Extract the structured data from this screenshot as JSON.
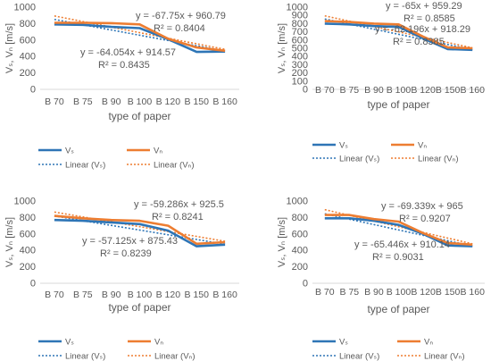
{
  "chart_data": [
    {
      "type": "line",
      "categories": [
        "B 70",
        "B 75",
        "B 90",
        "B 100",
        "B 120",
        "B 150",
        "B 160"
      ],
      "series": [
        {
          "name": "Vₛ",
          "values": [
            790,
            785,
            760,
            745,
            610,
            455,
            460
          ],
          "color": "#2e75b6",
          "style": "solid"
        },
        {
          "name": "Vₙ",
          "values": [
            810,
            810,
            805,
            790,
            615,
            510,
            470
          ],
          "color": "#ed7d31",
          "style": "solid"
        },
        {
          "name": "Linear (Vₛ)",
          "trend_of": 0,
          "color": "#2e75b6",
          "style": "dotted"
        },
        {
          "name": "Linear (Vₙ)",
          "trend_of": 1,
          "color": "#ed7d31",
          "style": "dotted"
        }
      ],
      "trendlines": [
        {
          "slope": -64.054,
          "intercept": 914.57,
          "equation": "y = -64.054x + 914.57",
          "r2": "R² = 0.8435"
        },
        {
          "slope": -67.75,
          "intercept": 960.79,
          "equation": "y = -67.75x + 960.79",
          "r2": "R² = 0.8404"
        }
      ],
      "ylim": [
        0,
        1000
      ],
      "yticks": [
        "0",
        "200",
        "400",
        "600",
        "800",
        "1000"
      ],
      "ylabel": "Vₛ, Vₙ [m/s]",
      "xlabel": "type of paper",
      "grid": false,
      "legend": "bottom"
    },
    {
      "type": "line",
      "categories": [
        "B 70",
        "B 75",
        "B 90",
        "B 100",
        "B 120",
        "B 150",
        "B 160"
      ],
      "series": [
        {
          "name": "Vₛ",
          "values": [
            800,
            790,
            770,
            760,
            620,
            490,
            480
          ],
          "color": "#2e75b6",
          "style": "solid"
        },
        {
          "name": "Vₙ",
          "values": [
            830,
            820,
            800,
            790,
            640,
            510,
            500
          ],
          "color": "#ed7d31",
          "style": "solid"
        },
        {
          "name": "Linear (Vₛ)",
          "trend_of": 0,
          "color": "#2e75b6",
          "style": "dotted"
        },
        {
          "name": "Linear (Vₙ)",
          "trend_of": 1,
          "color": "#ed7d31",
          "style": "dotted"
        }
      ],
      "trendlines": [
        {
          "slope": -62.196,
          "intercept": 918.29,
          "equation": "y = -62.196x + 918.29",
          "r2": "R² = 0.8385"
        },
        {
          "slope": -65,
          "intercept": 959.29,
          "equation": "y = -65x + 959.29",
          "r2": "R² = 0.8585"
        }
      ],
      "ylim": [
        0,
        1000
      ],
      "yticks": [
        "0",
        "100",
        "200",
        "300",
        "400",
        "500",
        "600",
        "700",
        "800",
        "900",
        "1000"
      ],
      "ylabel": "Vₛ, Vₙ [m/s]",
      "xlabel": "type of paper",
      "grid": false,
      "legend": "bottom"
    },
    {
      "type": "line",
      "categories": [
        "B 70",
        "B 75",
        "B 90",
        "B 100",
        "B 120",
        "B 150",
        "B 160"
      ],
      "series": [
        {
          "name": "Vₛ",
          "values": [
            770,
            760,
            740,
            720,
            640,
            450,
            470
          ],
          "color": "#2e75b6",
          "style": "solid"
        },
        {
          "name": "Vₙ",
          "values": [
            820,
            790,
            770,
            760,
            700,
            480,
            500
          ],
          "color": "#ed7d31",
          "style": "solid"
        },
        {
          "name": "Linear (Vₛ)",
          "trend_of": 0,
          "color": "#2e75b6",
          "style": "dotted"
        },
        {
          "name": "Linear (Vₙ)",
          "trend_of": 1,
          "color": "#ed7d31",
          "style": "dotted"
        }
      ],
      "trendlines": [
        {
          "slope": -57.125,
          "intercept": 875.43,
          "equation": "y = -57.125x + 875.43",
          "r2": "R² = 0.8239"
        },
        {
          "slope": -59.286,
          "intercept": 925.5,
          "equation": "y = -59.286x + 925.5",
          "r2": "R² = 0.8241"
        }
      ],
      "ylim": [
        0,
        1000
      ],
      "yticks": [
        "0",
        "200",
        "400",
        "600",
        "800",
        "1000"
      ],
      "ylabel": "Vₛ, Vₙ [m/s]",
      "xlabel": "type of paper",
      "grid": false,
      "legend": "bottom"
    },
    {
      "type": "line",
      "categories": [
        "B 70",
        "B 75",
        "B 90",
        "B 100",
        "B 120",
        "B 150",
        "B 160"
      ],
      "series": [
        {
          "name": "Vₛ",
          "values": [
            790,
            790,
            760,
            710,
            600,
            460,
            450
          ],
          "color": "#2e75b6",
          "style": "solid"
        },
        {
          "name": "Vₙ",
          "values": [
            830,
            830,
            780,
            750,
            610,
            490,
            470
          ],
          "color": "#ed7d31",
          "style": "solid"
        },
        {
          "name": "Linear (Vₛ)",
          "trend_of": 0,
          "color": "#2e75b6",
          "style": "dotted"
        },
        {
          "name": "Linear (Vₙ)",
          "trend_of": 1,
          "color": "#ed7d31",
          "style": "dotted"
        }
      ],
      "trendlines": [
        {
          "slope": -65.446,
          "intercept": 910.14,
          "equation": "y = -65.446x + 910.14",
          "r2": "R² = 0.9031"
        },
        {
          "slope": -69.339,
          "intercept": 965,
          "equation": "y = -69.339x + 965",
          "r2": "R² = 0.9207"
        }
      ],
      "ylim": [
        0,
        1000
      ],
      "yticks": [
        "0",
        "200",
        "400",
        "600",
        "800",
        "1000"
      ],
      "ylabel": "Vₛ, Vₙ [m/s]",
      "xlabel": "type of paper",
      "grid": false,
      "legend": "bottom"
    }
  ]
}
